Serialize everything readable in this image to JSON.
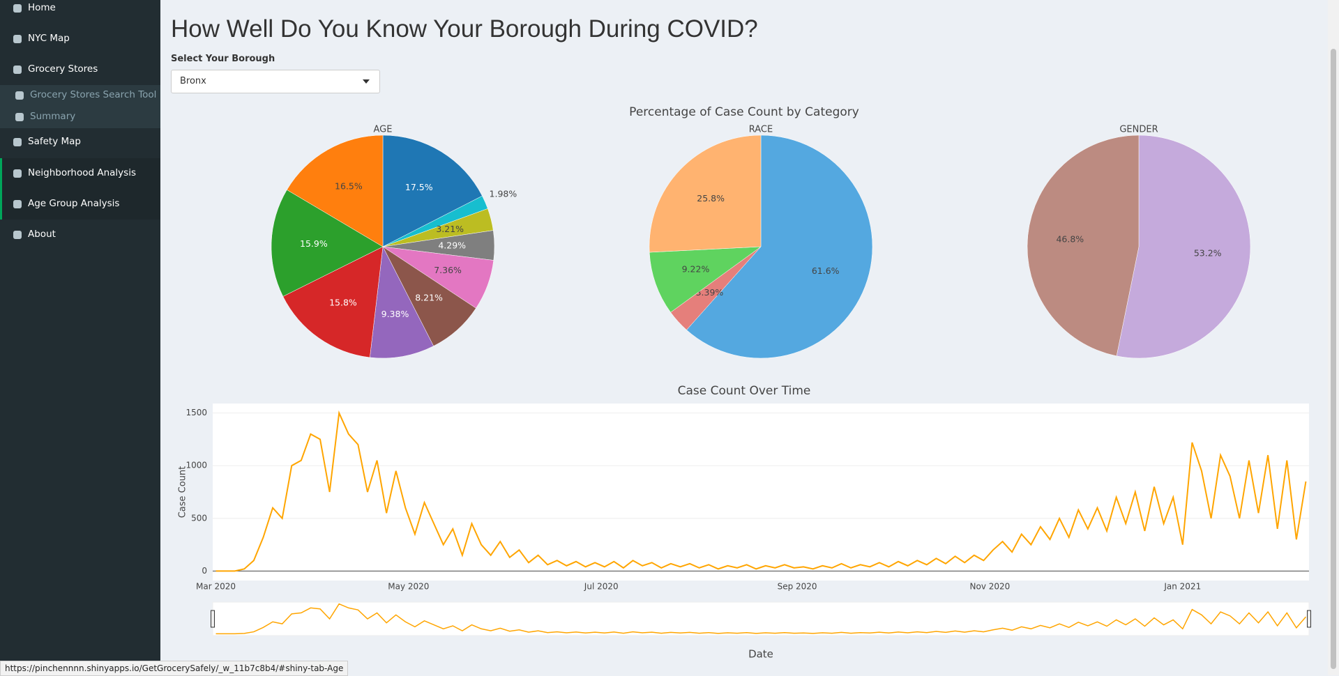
{
  "sidebar": {
    "items": [
      "Home",
      "NYC Map",
      "Grocery Stores",
      "Grocery Stores Search Tool",
      "Summary",
      "Safety Map",
      "Neighborhood Analysis",
      "Age Group Analysis",
      "About"
    ]
  },
  "page": {
    "title": "How Well Do You Know Your Borough During COVID?",
    "select_label": "Select Your Borough",
    "select_value": "Bronx"
  },
  "pies_title": "Percentage of Case Count by Category",
  "status_url": "https://pinchennnn.shinyapps.io/GetGrocerySafely/_w_11b7c8b4/#shiny-tab-Age",
  "chart_data": [
    {
      "type": "pie",
      "title": "AGE",
      "values": [
        17.5,
        1.98,
        3.21,
        4.29,
        7.36,
        8.21,
        9.38,
        15.8,
        15.9,
        16.5
      ],
      "value_labels": [
        "17.5%",
        "1.98%",
        "3.21%",
        "4.29%",
        "7.36%",
        "8.21%",
        "9.38%",
        "15.8%",
        "15.9%",
        "16.5%"
      ],
      "colors": [
        "#1f77b4",
        "#17becf",
        "#bcbd22",
        "#7f7f7f",
        "#e377c2",
        "#8c564b",
        "#9467bd",
        "#d62728",
        "#2ca02c",
        "#ff7f0e"
      ]
    },
    {
      "type": "pie",
      "title": "RACE",
      "values": [
        61.6,
        3.39,
        9.22,
        25.8
      ],
      "value_labels": [
        "61.6%",
        "3.39%",
        "9.22%",
        "25.8%"
      ],
      "colors": [
        "#54a8e0",
        "#e57f7b",
        "#5fd35f",
        "#ffb370"
      ]
    },
    {
      "type": "pie",
      "title": "GENDER",
      "values": [
        53.2,
        46.8
      ],
      "value_labels": [
        "53.2%",
        "46.8%"
      ],
      "colors": [
        "#c5aadc",
        "#bc8b81"
      ]
    },
    {
      "type": "line",
      "title": "Case Count Over Time",
      "x_label": "Date",
      "y_label": "Case Count",
      "color": "#ffa500",
      "x": [
        0,
        3,
        6,
        9,
        12,
        15,
        18,
        21,
        24,
        27,
        30,
        33,
        36,
        39,
        42,
        45,
        48,
        51,
        54,
        57,
        60,
        63,
        66,
        69,
        72,
        75,
        78,
        81,
        84,
        87,
        90,
        93,
        96,
        99,
        102,
        105,
        108,
        111,
        114,
        117,
        120,
        123,
        126,
        129,
        132,
        135,
        138,
        141,
        144,
        147,
        150,
        153,
        156,
        159,
        162,
        165,
        168,
        171,
        174,
        177,
        180,
        183,
        186,
        189,
        192,
        195,
        198,
        201,
        204,
        207,
        210,
        213,
        216,
        219,
        222,
        225,
        228,
        231,
        234,
        237,
        240,
        243,
        246,
        249,
        252,
        255,
        258,
        261,
        264,
        267,
        270,
        273,
        276,
        279,
        282,
        285,
        288,
        291,
        294,
        297,
        300,
        303,
        306,
        309,
        312,
        315,
        318,
        321,
        324,
        327,
        330,
        333,
        336,
        339,
        342,
        345
      ],
      "values": [
        0,
        0,
        0,
        20,
        100,
        320,
        600,
        500,
        1000,
        1050,
        1300,
        1250,
        750,
        1500,
        1300,
        1200,
        750,
        1050,
        550,
        950,
        600,
        350,
        650,
        450,
        250,
        400,
        150,
        450,
        250,
        150,
        280,
        130,
        200,
        80,
        150,
        60,
        100,
        50,
        90,
        40,
        80,
        40,
        90,
        30,
        100,
        50,
        80,
        30,
        70,
        40,
        70,
        30,
        60,
        20,
        50,
        30,
        60,
        20,
        50,
        30,
        60,
        30,
        40,
        20,
        50,
        30,
        70,
        30,
        60,
        40,
        80,
        40,
        90,
        50,
        100,
        60,
        120,
        70,
        140,
        80,
        150,
        100,
        200,
        280,
        180,
        350,
        250,
        420,
        300,
        500,
        320,
        580,
        400,
        600,
        380,
        700,
        450,
        750,
        380,
        800,
        450,
        700,
        250,
        1220,
        950,
        500,
        1100,
        900,
        500,
        1050,
        550,
        1100,
        400,
        1050,
        300,
        850
      ],
      "xlim": [
        -1,
        346
      ],
      "xticks": [
        {
          "value": 0,
          "label": "Mar 2020"
        },
        {
          "value": 61,
          "label": "May 2020"
        },
        {
          "value": 122,
          "label": "Jul 2020"
        },
        {
          "value": 184,
          "label": "Sep 2020"
        },
        {
          "value": 245,
          "label": "Nov 2020"
        },
        {
          "value": 306,
          "label": "Jan 2021"
        }
      ],
      "ylim": [
        -90,
        1590
      ],
      "yticks": [
        0,
        500,
        1000,
        1500
      ]
    }
  ]
}
